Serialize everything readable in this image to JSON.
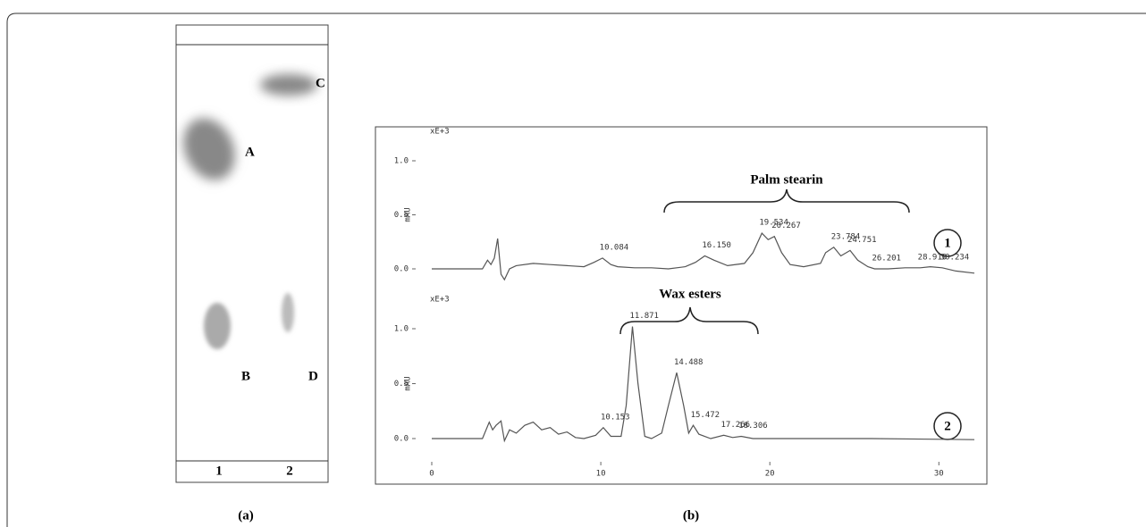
{
  "figure": {
    "panel_labels": [
      "(a)",
      "(b)"
    ],
    "tlc": {
      "spot_labels": [
        "A",
        "B",
        "C",
        "D"
      ],
      "lane_labels": [
        "1",
        "2"
      ]
    }
  },
  "chart_data": [
    {
      "type": "line",
      "annotation": "Palm stearin",
      "trace_label": "1",
      "ylabel": "mAU",
      "scale_label": "xE+3",
      "x": [
        0,
        3.0,
        3.3,
        3.5,
        3.7,
        3.9,
        4.1,
        4.3,
        4.6,
        5,
        6,
        7,
        8,
        9,
        9.6,
        10.1,
        10.6,
        11,
        12,
        13,
        14,
        15,
        15.6,
        16.15,
        16.7,
        17.5,
        18.5,
        19.0,
        19.53,
        19.9,
        20.27,
        20.7,
        21.2,
        22,
        23,
        23.3,
        23.78,
        24.2,
        24.75,
        25.2,
        25.8,
        26.2,
        27,
        28,
        28.9,
        29.5,
        30.2,
        31,
        32.1
      ],
      "series": [
        {
          "name": "1",
          "color": "#555555",
          "values": [
            0,
            0,
            0.08,
            0.04,
            0.1,
            0.28,
            -0.05,
            -0.1,
            0,
            0.03,
            0.05,
            0.04,
            0.03,
            0.02,
            0.06,
            0.1,
            0.04,
            0.02,
            0.01,
            0.01,
            0.0,
            0.02,
            0.06,
            0.12,
            0.08,
            0.03,
            0.05,
            0.15,
            0.33,
            0.27,
            0.3,
            0.15,
            0.04,
            0.02,
            0.05,
            0.15,
            0.2,
            0.12,
            0.17,
            0.08,
            0.02,
            0.0,
            0.0,
            0.01,
            0.01,
            0.02,
            0.01,
            -0.02,
            -0.04
          ]
        }
      ],
      "peaks": [
        {
          "time": 10.084,
          "label": "10.084"
        },
        {
          "time": 16.15,
          "label": "16.150"
        },
        {
          "time": 19.534,
          "label": "19.534"
        },
        {
          "time": 20.267,
          "label": "20.267"
        },
        {
          "time": 23.784,
          "label": "23.784"
        },
        {
          "time": 24.751,
          "label": "24.751"
        },
        {
          "time": 26.201,
          "label": "26.201"
        },
        {
          "time": 28.91,
          "label": "28.910"
        },
        {
          "time": 30.234,
          "label": "30.234"
        }
      ],
      "xlim": [
        0,
        32.1
      ],
      "ylim": [
        -0.1,
        1.15
      ],
      "yticks": [
        {
          "value": 0,
          "label": "0.0"
        },
        {
          "value": 0.5,
          "label": "0.5"
        },
        {
          "value": 1,
          "label": "1.0"
        }
      ]
    },
    {
      "type": "line",
      "annotation": "Wax esters",
      "trace_label": "2",
      "ylabel": "mAU",
      "scale_label": "xE+3",
      "x": [
        0,
        3.0,
        3.4,
        3.6,
        3.8,
        4.1,
        4.3,
        4.6,
        5,
        5.5,
        6,
        6.5,
        7,
        7.5,
        8,
        8.5,
        9,
        9.7,
        10.15,
        10.6,
        11.2,
        11.5,
        11.87,
        12.2,
        12.6,
        13,
        13.6,
        14.0,
        14.49,
        14.9,
        15.2,
        15.47,
        15.8,
        16.5,
        17.27,
        17.8,
        18.31,
        19,
        22,
        26,
        32.1
      ],
      "series": [
        {
          "name": "2",
          "color": "#555555",
          "values": [
            0,
            0,
            0.15,
            0.08,
            0.12,
            0.16,
            -0.02,
            0.08,
            0.05,
            0.12,
            0.15,
            0.08,
            0.1,
            0.04,
            0.06,
            0.01,
            0.0,
            0.03,
            0.1,
            0.02,
            0.02,
            0.3,
            1.02,
            0.5,
            0.02,
            0.0,
            0.05,
            0.3,
            0.6,
            0.3,
            0.05,
            0.12,
            0.04,
            0.0,
            0.03,
            0.01,
            0.02,
            0.0,
            0.0,
            0.0,
            -0.01
          ]
        }
      ],
      "peaks": [
        {
          "time": 10.153,
          "label": "10.153"
        },
        {
          "time": 11.871,
          "label": "11.871"
        },
        {
          "time": 14.488,
          "label": "14.488"
        },
        {
          "time": 15.472,
          "label": "15.472"
        },
        {
          "time": 17.266,
          "label": "17.266"
        },
        {
          "time": 18.306,
          "label": "18.306"
        }
      ],
      "xlim": [
        0,
        32.1
      ],
      "ylim": [
        -0.1,
        1.15
      ],
      "xticks": [
        0,
        10,
        20,
        30
      ],
      "yticks": [
        {
          "value": 0,
          "label": "0.0"
        },
        {
          "value": 0.5,
          "label": "0.5"
        },
        {
          "value": 1,
          "label": "1.0"
        }
      ]
    }
  ]
}
